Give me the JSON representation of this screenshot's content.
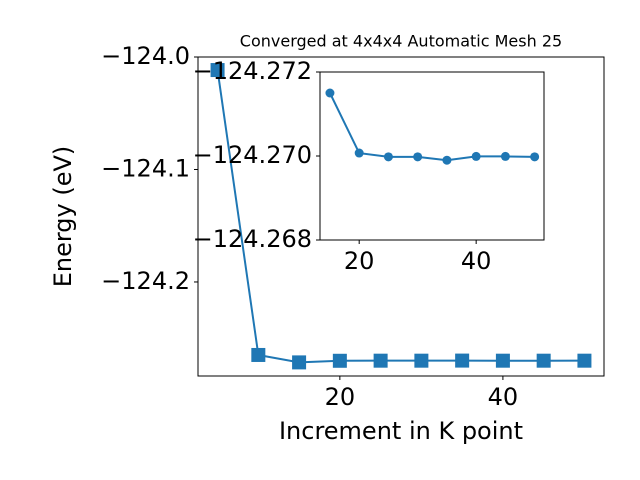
{
  "chart_data": [
    {
      "type": "line",
      "title": "Converged at 4x4x4 Automatic Mesh 25",
      "x_label": "Increment in K point",
      "y_label": "Energy (eV)",
      "x": [
        5,
        10,
        15,
        20,
        25,
        30,
        35,
        40,
        45,
        50
      ],
      "series": [
        {
          "color": "#1f77b4",
          "marker": "square",
          "values": [
            -124.0116,
            -124.2649,
            -124.2715,
            -124.27007,
            -124.26998,
            -124.26998,
            -124.2699,
            -124.26999,
            -124.26999,
            -124.26998
          ]
        }
      ],
      "xlim": [
        2.6,
        52.4
      ],
      "ylim": [
        -124.2836,
        -124.0
      ],
      "xticks": [
        20,
        40
      ],
      "yticks": [
        {
          "value": -124.0,
          "label": "−124.0"
        },
        {
          "value": -124.1,
          "label": "−124.1"
        },
        {
          "value": -124.2,
          "label": "−124.2"
        }
      ]
    },
    {
      "type": "line",
      "x": [
        15,
        20,
        25,
        30,
        35,
        40,
        45,
        50
      ],
      "series": [
        {
          "color": "#1f77b4",
          "marker": "circle",
          "values": [
            -124.2715,
            -124.27007,
            -124.26998,
            -124.26998,
            -124.2699,
            -124.26999,
            -124.26999,
            -124.26998
          ]
        }
      ],
      "xlim": [
        13.3,
        51.6
      ],
      "ylim": [
        -124.268,
        -124.272
      ],
      "xticks": [
        20,
        40
      ],
      "yticks": [
        {
          "value": -124.272,
          "label": "−124.272"
        },
        {
          "value": -124.27,
          "label": "−124.270"
        },
        {
          "value": -124.268,
          "label": "−124.268"
        }
      ]
    }
  ]
}
